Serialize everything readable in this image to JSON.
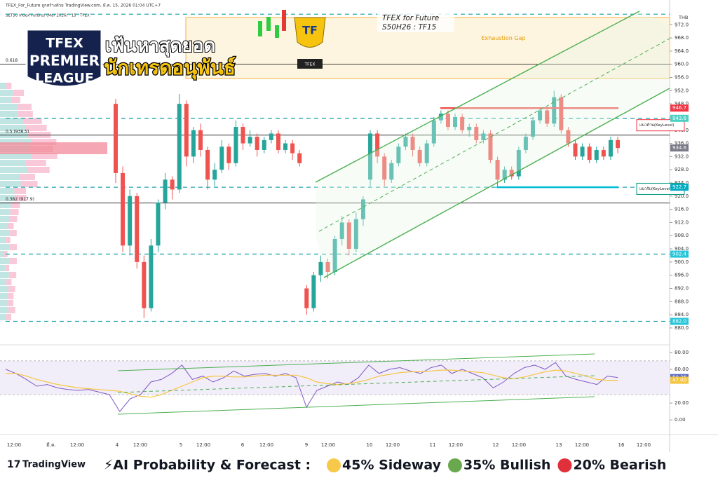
{
  "header": {
    "line1": "TFEX_For_Future ถูกสร้างด้วย TradingView.com, มี.ค. 15, 2026 01:04 UTC+7",
    "line2": "SET50 Index Futures (Mar 2026) · 15 · TFEX",
    "currency": "THB"
  },
  "logo": {
    "line1": "TFEX",
    "line2": "PREMIER",
    "line3": "LEAGUE",
    "slogan1": "เฟ้นหาสุดยอด",
    "slogan2": "นักเทรดอนุพันธ์",
    "badge": "TF",
    "plate": "TFEX"
  },
  "chart_data": {
    "type": "candlestick",
    "title": "TFEX for Future",
    "subtitle": "S50H26 : TF15",
    "ylim": [
      875.3,
      977.8
    ],
    "yticks": [
      {
        "value": 880,
        "label": "880.0"
      },
      {
        "value": 884,
        "label": "884.0"
      },
      {
        "value": 888,
        "label": "888.0"
      },
      {
        "value": 892,
        "label": "892.0"
      },
      {
        "value": 896,
        "label": "896.0"
      },
      {
        "value": 900,
        "label": "900.0"
      },
      {
        "value": 904,
        "label": "904.0"
      },
      {
        "value": 908,
        "label": "908.0"
      },
      {
        "value": 912,
        "label": "912.0"
      },
      {
        "value": 916,
        "label": "916.0"
      },
      {
        "value": 920,
        "label": "920.0"
      },
      {
        "value": 924,
        "label": "924.0"
      },
      {
        "value": 928,
        "label": "928.0"
      },
      {
        "value": 932,
        "label": "932.0"
      },
      {
        "value": 936,
        "label": "936.0"
      },
      {
        "value": 940,
        "label": "940.0"
      },
      {
        "value": 944,
        "label": "944.0"
      },
      {
        "value": 948,
        "label": "948.0"
      },
      {
        "value": 952,
        "label": "952.0"
      },
      {
        "value": 956,
        "label": "956.0"
      },
      {
        "value": 960,
        "label": "960.0"
      },
      {
        "value": 964,
        "label": "964.0"
      },
      {
        "value": 968,
        "label": "968.0"
      },
      {
        "value": 972,
        "label": "972.0"
      }
    ],
    "up_color": "#26a69a",
    "down_color": "#ef5350",
    "candles": [
      [
        948,
        949.5,
        924,
        927
      ],
      [
        927,
        929,
        903,
        905
      ],
      [
        905,
        922,
        902,
        920
      ],
      [
        920,
        921,
        898,
        900
      ],
      [
        900,
        902,
        883,
        886
      ],
      [
        886,
        907,
        885,
        905
      ],
      [
        905,
        919,
        903,
        918
      ],
      [
        918,
        927,
        916,
        925
      ],
      [
        925,
        926,
        919,
        922
      ],
      [
        922,
        951,
        921,
        948
      ],
      [
        948,
        949,
        929,
        932
      ],
      [
        932,
        941,
        930,
        940
      ],
      [
        940,
        942,
        932,
        934
      ],
      [
        934,
        935,
        922,
        925
      ],
      [
        925,
        930,
        923,
        928
      ],
      [
        928,
        937,
        927,
        935
      ],
      [
        935,
        936,
        928,
        930
      ],
      [
        930,
        943,
        929,
        941
      ],
      [
        941,
        942,
        934,
        936
      ],
      [
        936,
        940,
        935,
        938
      ],
      [
        938,
        939,
        932,
        934
      ],
      [
        934,
        938,
        933,
        937
      ],
      [
        937,
        940,
        936,
        939
      ],
      [
        939,
        940,
        933,
        934
      ],
      [
        934,
        937,
        933,
        936
      ],
      [
        936,
        937,
        931,
        933
      ],
      [
        933,
        934,
        929,
        930
      ],
      [
        892,
        893,
        884,
        886
      ],
      [
        886,
        897,
        885,
        896
      ],
      [
        896,
        902,
        894,
        900
      ],
      [
        900,
        901,
        895,
        897
      ],
      [
        897,
        908,
        896,
        907
      ],
      [
        907,
        914,
        905,
        912
      ],
      [
        912,
        913,
        902,
        904
      ],
      [
        904,
        915,
        903,
        913
      ],
      [
        913,
        920,
        911,
        919
      ],
      [
        925,
        940,
        923,
        939
      ],
      [
        939,
        940,
        930,
        932
      ],
      [
        932,
        933,
        923,
        925
      ],
      [
        925,
        931,
        924,
        930
      ],
      [
        930,
        936,
        929,
        935
      ],
      [
        935,
        939,
        934,
        938
      ],
      [
        938,
        939,
        932,
        934
      ],
      [
        934,
        935,
        929,
        930
      ],
      [
        930,
        937,
        929,
        936
      ],
      [
        936,
        944,
        935,
        943
      ],
      [
        943,
        946,
        942,
        945
      ],
      [
        945,
        946,
        940,
        941
      ],
      [
        941,
        945,
        940,
        944
      ],
      [
        944,
        945,
        939,
        940
      ],
      [
        940,
        942,
        938,
        941
      ],
      [
        941,
        942,
        936,
        937
      ],
      [
        937,
        940,
        936,
        939
      ],
      [
        939,
        940,
        930,
        931
      ],
      [
        931,
        932,
        923,
        925
      ],
      [
        925,
        929,
        924,
        928
      ],
      [
        928,
        929,
        925,
        926
      ],
      [
        926,
        935,
        925,
        934
      ],
      [
        934,
        939,
        933,
        938
      ],
      [
        938,
        944,
        937,
        943
      ],
      [
        943,
        947,
        942,
        946
      ],
      [
        946,
        947,
        941,
        942
      ],
      [
        942,
        952,
        941,
        950
      ],
      [
        950,
        951,
        939,
        940
      ],
      [
        940,
        941,
        935,
        936
      ],
      [
        936,
        937,
        931,
        932
      ],
      [
        932,
        936,
        931,
        935
      ],
      [
        935,
        936,
        930,
        931
      ],
      [
        931,
        935,
        930,
        934
      ],
      [
        934,
        935,
        931,
        932
      ],
      [
        932,
        938,
        931,
        937
      ],
      [
        937,
        938,
        933,
        934.6
      ]
    ],
    "time_labels": [
      "12:00",
      "มี.ค.",
      "12:00",
      "4",
      "12:00",
      "5",
      "12:00",
      "6",
      "12:00",
      "9",
      "12:00",
      "10",
      "12:00",
      "11",
      "12:00",
      "12",
      "12:00",
      "13",
      "12:00",
      "16",
      "12:00"
    ],
    "gap_zone": {
      "label": "Exhaustion Gap",
      "top": 974.2,
      "bottom": 955.7,
      "color": "#f5b041"
    },
    "fib_levels": [
      {
        "label": "0.618",
        "price": 960
      },
      {
        "label": "0.5 (938.5)",
        "price": 938.5
      },
      {
        "label": "0.382 (917.9)",
        "price": 917.9
      }
    ],
    "dashed_levels": [
      975.2,
      943.6,
      922.7,
      902.4,
      882
    ],
    "key_levels": [
      {
        "label": "แนวต้าน(KeyLevel)",
        "price": 941.5,
        "color": "#f23645"
      },
      {
        "label": "แนวรับ(KeyLevel)",
        "price": 922.2,
        "color": "#089981"
      }
    ],
    "price_tags": [
      {
        "value": 946.7,
        "color": "#f23645"
      },
      {
        "value": 943.6,
        "color": "#4dd0c4"
      },
      {
        "value": 934.6,
        "color": "#787b86"
      },
      {
        "value": 922.7,
        "color": "#00acc1"
      },
      {
        "value": 902.4,
        "color": "#26c6da"
      },
      {
        "value": {
          "value": 882,
          "label": "882.0"
        },
        "color": "#26c6da"
      }
    ],
    "rsi": {
      "ylim": [
        -9,
        89
      ],
      "yticks": [
        {
          "value": 0,
          "label": "0.00"
        },
        {
          "value": 20,
          "label": "20.00"
        },
        {
          "value": 60,
          "label": "60.00"
        },
        {
          "value": 80,
          "label": "80.00"
        }
      ],
      "band": [
        30,
        70
      ],
      "series": [
        {
          "name": "RSI",
          "color": "#7e57c2",
          "values": [
            60,
            55,
            48,
            40,
            42,
            38,
            36,
            35,
            36,
            33,
            30,
            10,
            25,
            30,
            45,
            48,
            55,
            65,
            48,
            52,
            45,
            50,
            58,
            52,
            54,
            55,
            52,
            55,
            50,
            15,
            35,
            40,
            45,
            42,
            50,
            65,
            55,
            60,
            62,
            58,
            55,
            62,
            65,
            55,
            60,
            55,
            50,
            38,
            45,
            55,
            62,
            65,
            60,
            68,
            52,
            48,
            45,
            42,
            52,
            50.26
          ]
        },
        {
          "name": "MA",
          "color": "#f5c542",
          "values": [
            55,
            55,
            52,
            48,
            45,
            42,
            40,
            38,
            37,
            36,
            35,
            34,
            31,
            28,
            27,
            30,
            35,
            40,
            45,
            50,
            52,
            52,
            51,
            51,
            52,
            53,
            53,
            53,
            53,
            50,
            45,
            43,
            42,
            43,
            45,
            48,
            52,
            54,
            56,
            57,
            57,
            58,
            59,
            59,
            58,
            57,
            56,
            53,
            50,
            49,
            51,
            54,
            57,
            59,
            58,
            55,
            52,
            48,
            47,
            47
          ]
        }
      ],
      "tags": [
        {
          "value": 50.26,
          "color": "#5c6bc0"
        },
        {
          "value": {
            "value": 47,
            "label": "47.00"
          },
          "color": "#f5c542"
        }
      ]
    }
  },
  "footer": {
    "brand": "TradingView",
    "forecast_title": "⚡AI Probability & Forecast :",
    "forecasts": [
      {
        "text": "45% Sideway",
        "color": "#f7c948"
      },
      {
        "text": "35% Bullish",
        "color": "#6aa84f"
      },
      {
        "text": "20% Bearish",
        "color": "#e0303a"
      }
    ]
  }
}
